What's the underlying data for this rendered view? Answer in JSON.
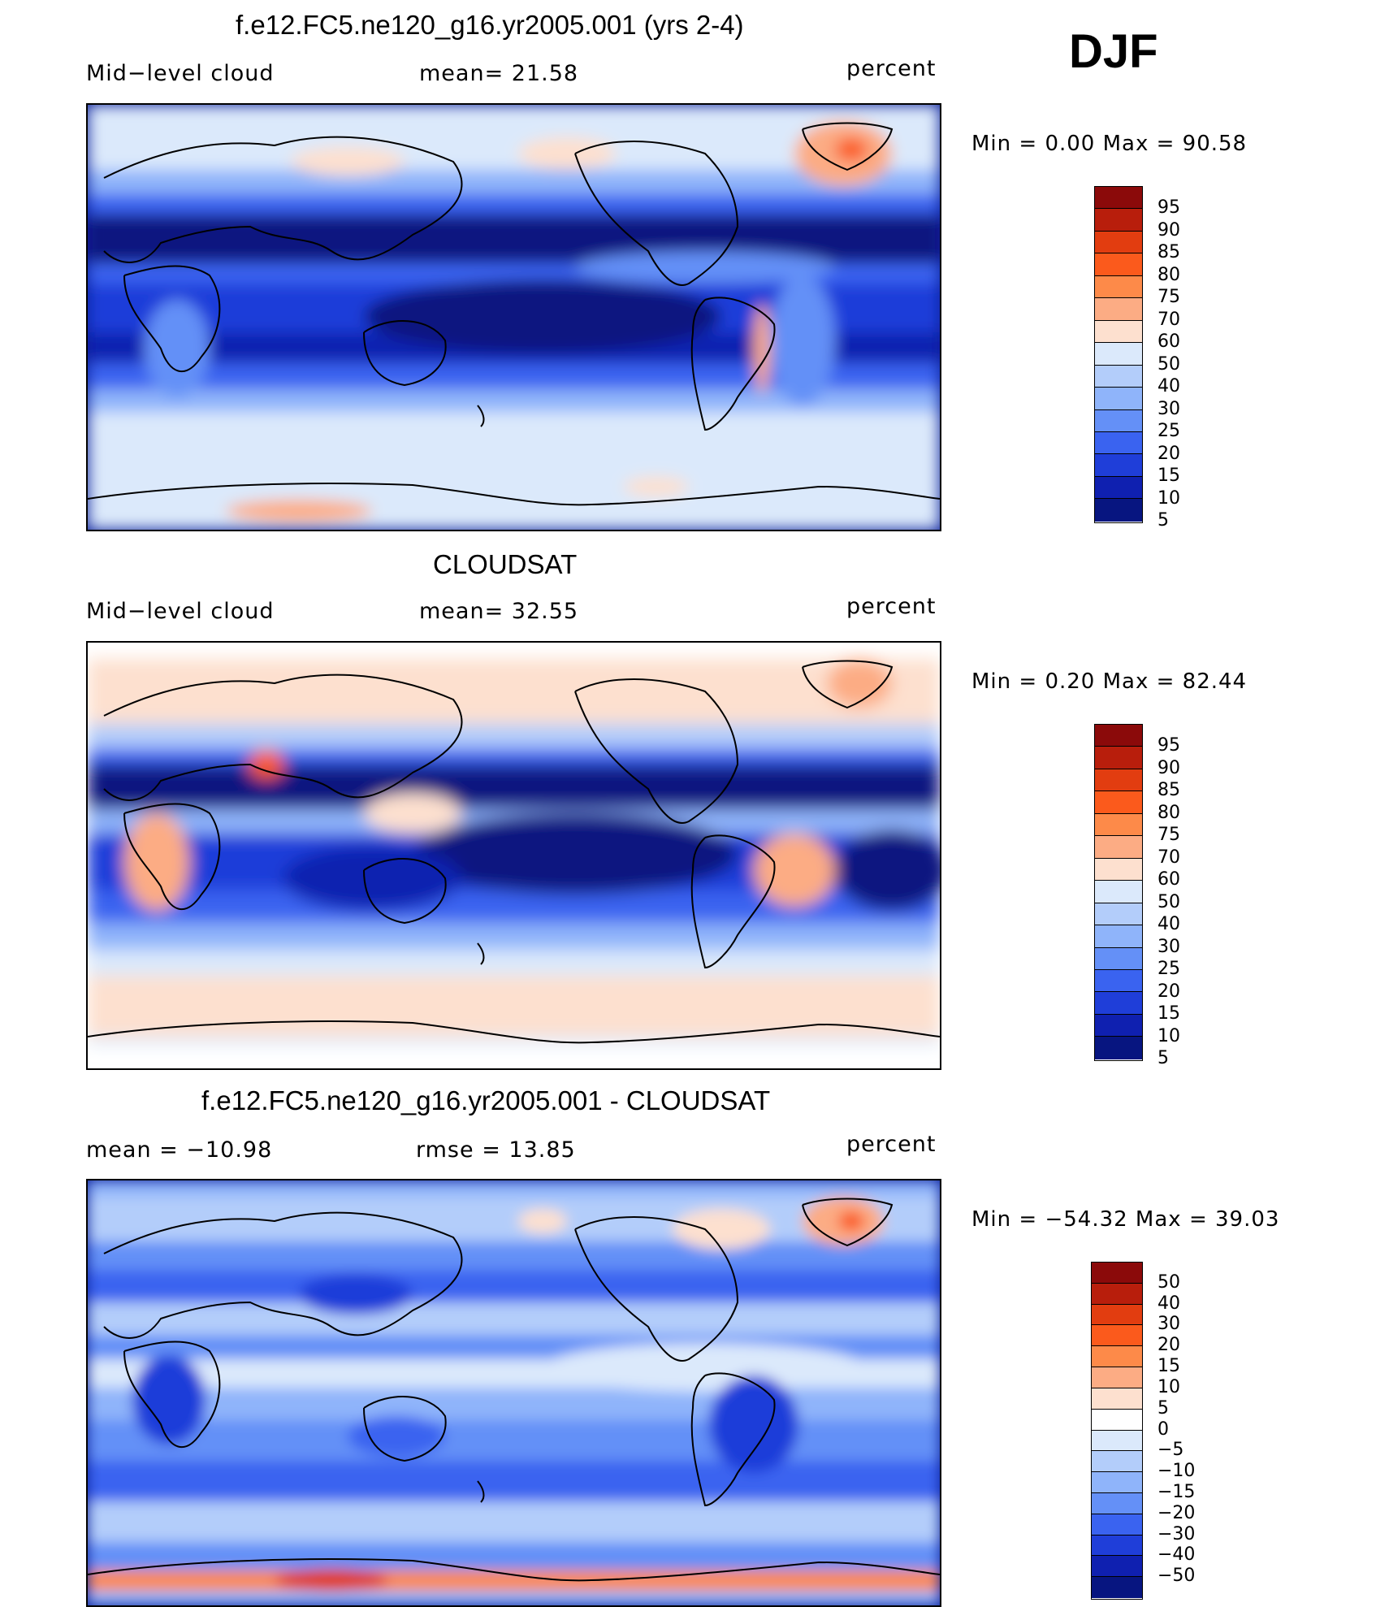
{
  "season": "DJF",
  "panels": [
    {
      "id": "model",
      "title": "f.e12.FC5.ne120_g16.yr2005.001 (yrs 2-4)",
      "left_label": "Mid−level  cloud",
      "center_label": "mean=   21.58",
      "units": "percent",
      "minmax": "Min  =      0.00  Max  =     90.58",
      "colorbar": {
        "colors": [
          "#8b0a0a",
          "#b81e0c",
          "#e23d10",
          "#fb5a1c",
          "#fd8a49",
          "#fcac84",
          "#fde0cf",
          "#dbe9fb",
          "#b3cdfa",
          "#8fb4fa",
          "#6490f7",
          "#3a63f0",
          "#1f3ed9",
          "#0f20b0",
          "#071580"
        ],
        "labels": [
          "95",
          "90",
          "85",
          "80",
          "75",
          "70",
          "60",
          "50",
          "40",
          "30",
          "25",
          "20",
          "15",
          "10",
          "5"
        ]
      }
    },
    {
      "id": "obs",
      "title": "CLOUDSAT",
      "left_label": "Mid−level  cloud",
      "center_label": "mean=   32.55",
      "units": "percent",
      "minmax": "Min  =      0.20  Max  =     82.44",
      "colorbar": {
        "colors": [
          "#8b0a0a",
          "#b81e0c",
          "#e23d10",
          "#fb5a1c",
          "#fd8a49",
          "#fcac84",
          "#fde0cf",
          "#dbe9fb",
          "#b3cdfa",
          "#8fb4fa",
          "#6490f7",
          "#3a63f0",
          "#1f3ed9",
          "#0f20b0",
          "#071580"
        ],
        "labels": [
          "95",
          "90",
          "85",
          "80",
          "75",
          "70",
          "60",
          "50",
          "40",
          "30",
          "25",
          "20",
          "15",
          "10",
          "5"
        ]
      }
    },
    {
      "id": "diff",
      "title": "f.e12.FC5.ne120_g16.yr2005.001 - CLOUDSAT",
      "left_label": "mean  =  −10.98",
      "center_label": "rmse  =    13.85",
      "units": "percent",
      "minmax": "Min  =  −54.32  Max  =     39.03",
      "colorbar": {
        "colors": [
          "#8b0a0a",
          "#b81e0c",
          "#e23d10",
          "#fb5a1c",
          "#fd8a49",
          "#fcac84",
          "#fde0cf",
          "#ffffff",
          "#dbe9fb",
          "#b3cdfa",
          "#8fb4fa",
          "#6490f7",
          "#3a63f0",
          "#1f3ed9",
          "#0f20b0",
          "#071580"
        ],
        "labels": [
          "50",
          "40",
          "30",
          "20",
          "15",
          "10",
          "5",
          "0",
          "−5",
          "−10",
          "−15",
          "−20",
          "−30",
          "−40",
          "−50"
        ]
      }
    }
  ]
}
